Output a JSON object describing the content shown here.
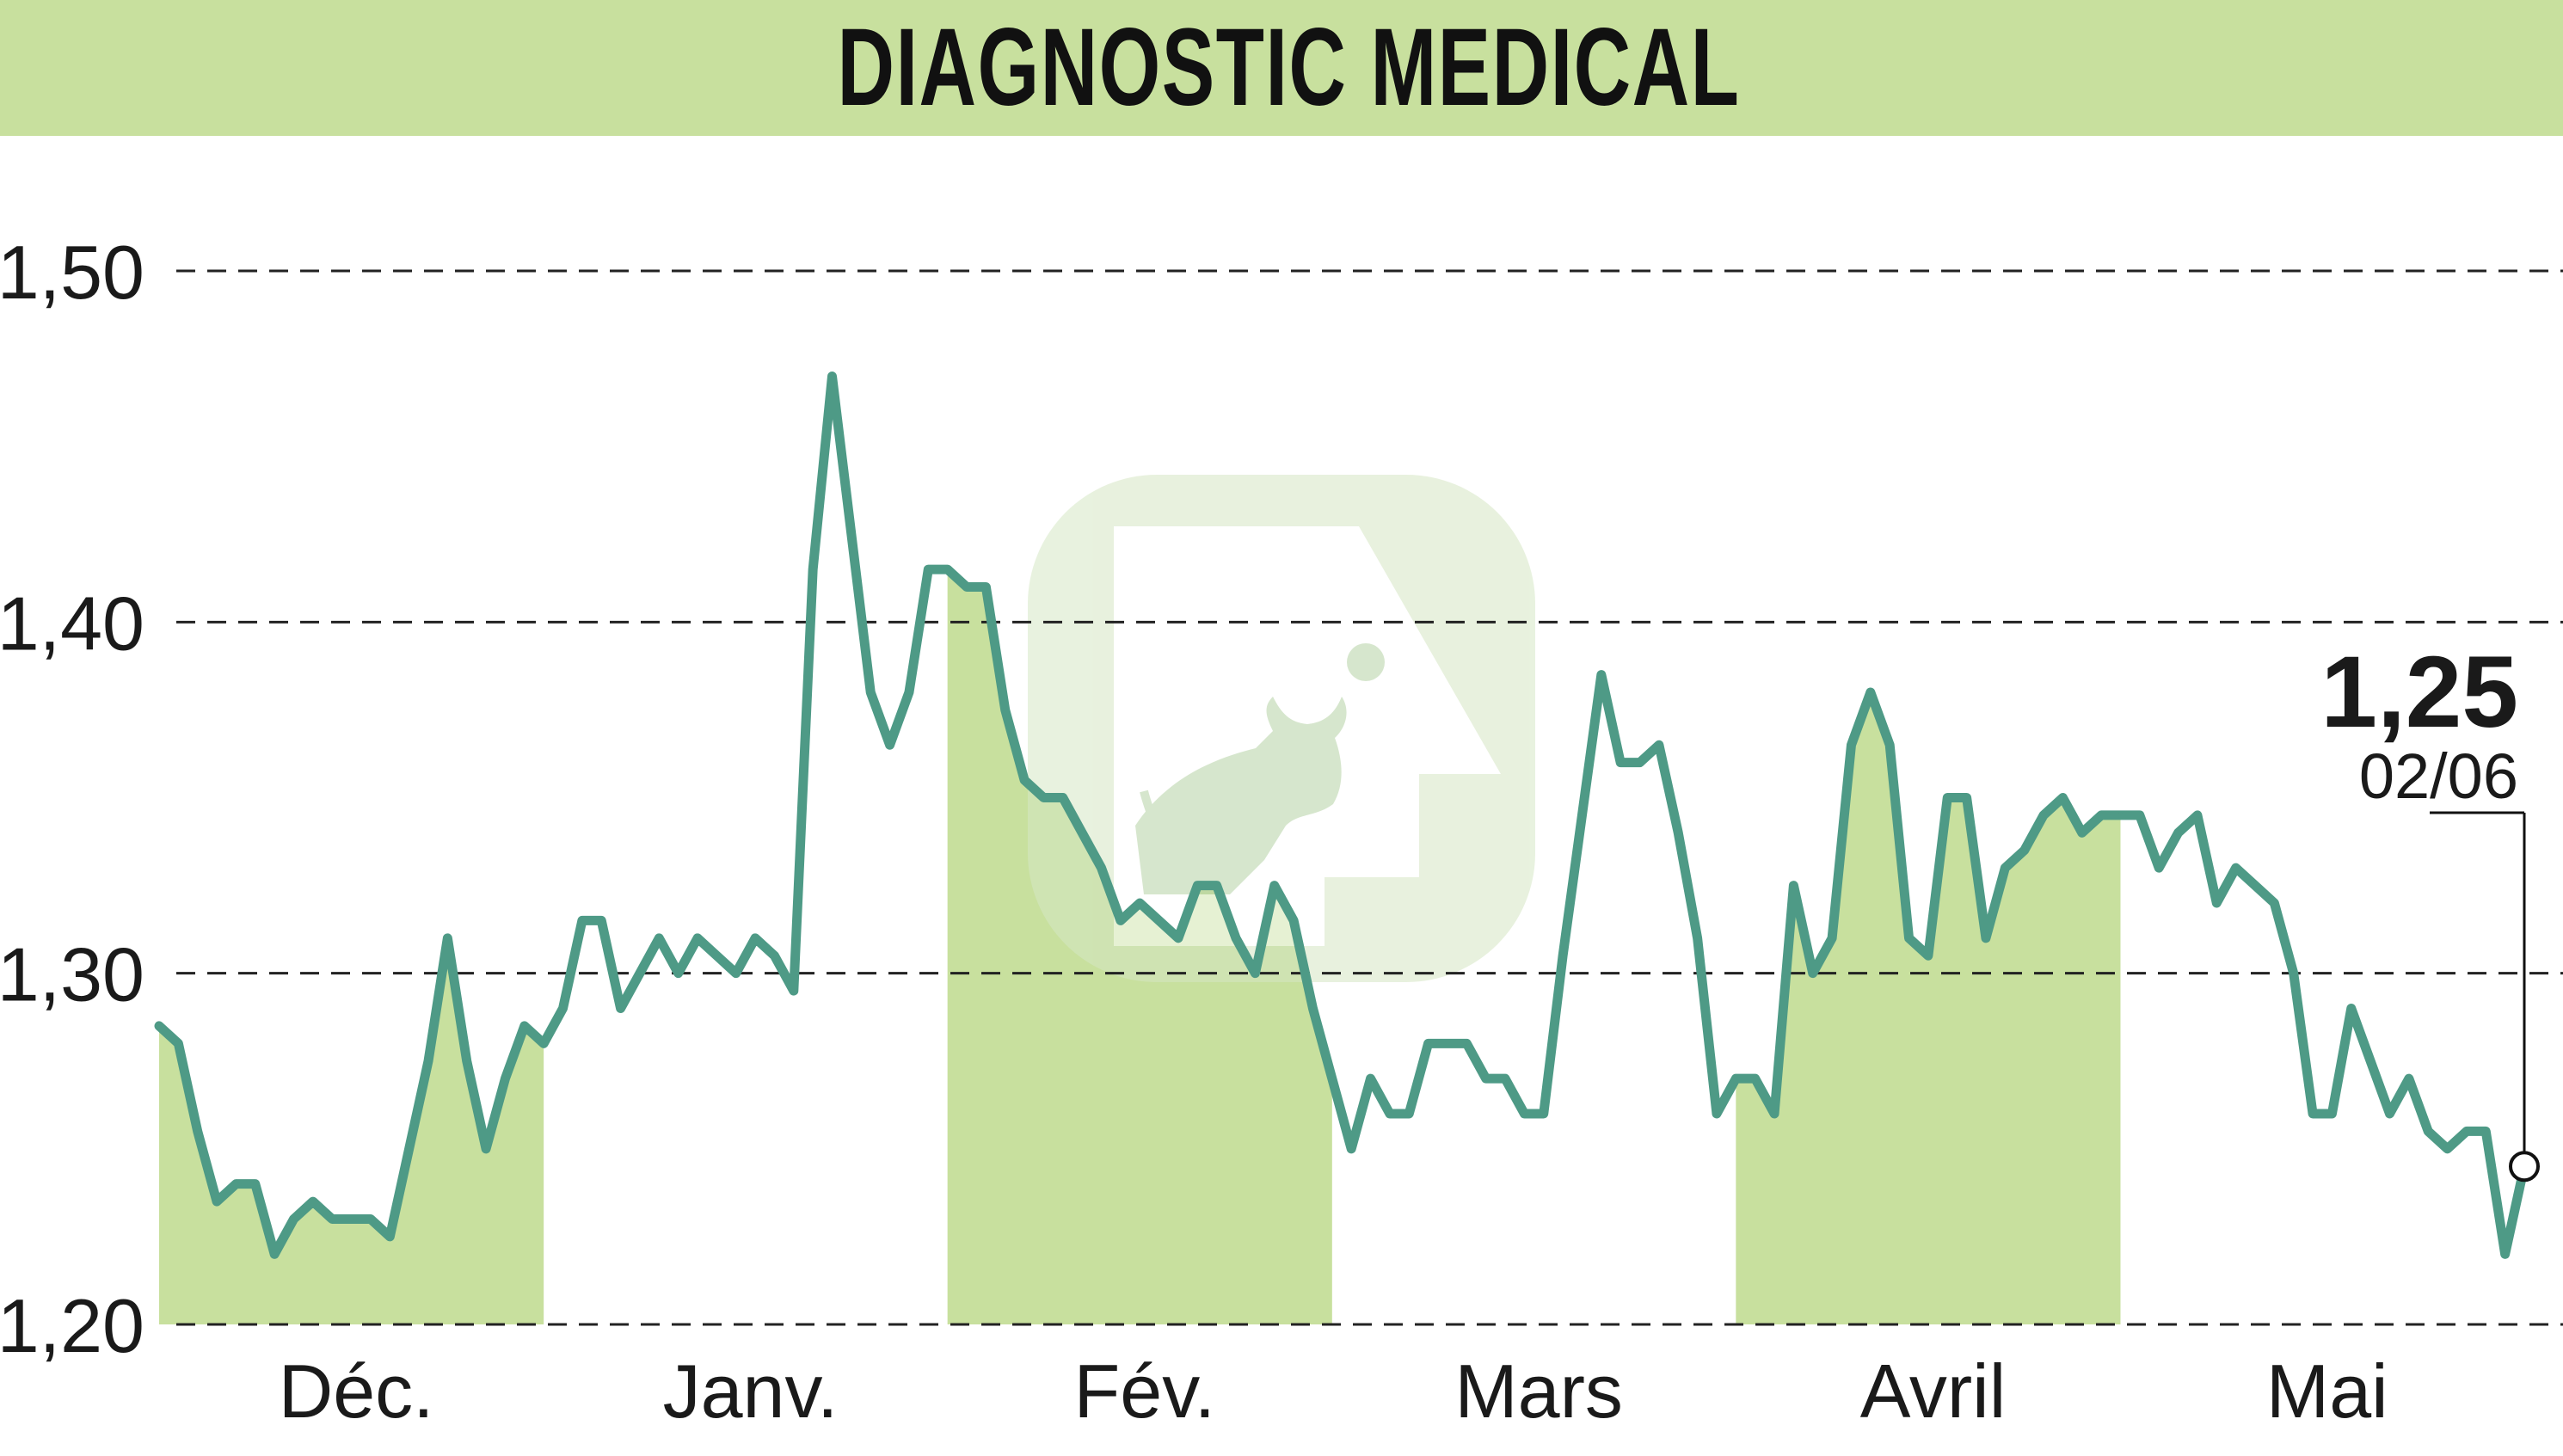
{
  "header": {
    "title": "DIAGNOSTIC MEDICAL"
  },
  "colors": {
    "header_bg": "#c8e09e",
    "band_fill": "#c8e09e",
    "line": "#4e9a86",
    "grid": "#222222"
  },
  "watermark": {
    "icon": "bull-logo-icon"
  },
  "chart_data": {
    "type": "line",
    "title": "DIAGNOSTIC MEDICAL",
    "ylim": [
      1.2,
      1.5
    ],
    "yticks": [
      "1,20",
      "1,30",
      "1,40",
      "1,50"
    ],
    "ytick_values": [
      1.2,
      1.3,
      1.4,
      1.5
    ],
    "grid": "horizontal dashed",
    "months": [
      "Déc.",
      "Janv.",
      "Fév.",
      "Mars",
      "Avril",
      "Mai"
    ],
    "shaded_months": [
      "Déc.",
      "Fév.",
      "Avril"
    ],
    "last_value": "1,25",
    "last_date": "02/06",
    "series": [
      {
        "values": [
          1.285,
          1.28,
          1.255,
          1.235,
          1.24,
          1.24,
          1.22,
          1.23,
          1.235,
          1.23,
          1.23,
          1.23,
          1.225,
          1.25,
          1.275,
          1.31,
          1.275,
          1.25,
          1.27,
          1.285,
          1.28,
          1.29,
          1.315,
          1.315,
          1.29,
          1.3,
          1.31,
          1.3,
          1.31,
          1.305,
          1.3,
          1.31,
          1.305,
          1.295,
          1.415,
          1.47,
          1.425,
          1.38,
          1.365,
          1.38,
          1.415,
          1.415,
          1.41,
          1.41,
          1.375,
          1.355,
          1.35,
          1.35,
          1.34,
          1.33,
          1.315,
          1.32,
          1.315,
          1.31,
          1.325,
          1.325,
          1.31,
          1.3,
          1.325,
          1.315,
          1.29,
          1.27,
          1.25,
          1.27,
          1.26,
          1.26,
          1.28,
          1.28,
          1.28,
          1.27,
          1.27,
          1.26,
          1.26,
          1.305,
          1.345,
          1.385,
          1.36,
          1.36,
          1.365,
          1.34,
          1.31,
          1.26,
          1.27,
          1.27,
          1.26,
          1.325,
          1.3,
          1.31,
          1.365,
          1.38,
          1.365,
          1.31,
          1.305,
          1.35,
          1.35,
          1.31,
          1.33,
          1.335,
          1.345,
          1.35,
          1.34,
          1.345,
          1.345,
          1.345,
          1.33,
          1.34,
          1.345,
          1.32,
          1.33,
          1.325,
          1.32,
          1.3,
          1.26,
          1.26,
          1.29,
          1.275,
          1.26,
          1.27,
          1.255,
          1.25,
          1.255,
          1.255,
          1.22,
          1.245
        ]
      }
    ]
  }
}
